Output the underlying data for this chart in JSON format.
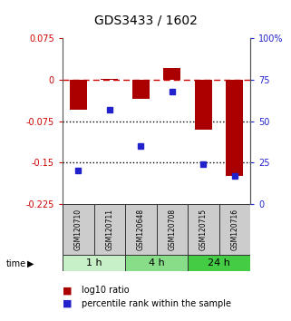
{
  "title": "GDS3433 / 1602",
  "samples": [
    "GSM120710",
    "GSM120711",
    "GSM120648",
    "GSM120708",
    "GSM120715",
    "GSM120716"
  ],
  "log10_ratio": [
    -0.055,
    0.002,
    -0.035,
    0.022,
    -0.09,
    -0.175
  ],
  "percentile_rank": [
    20,
    57,
    35,
    68,
    24,
    17
  ],
  "groups": [
    {
      "label": "1 h",
      "samples": [
        0,
        1
      ],
      "color": "#c8f0c8"
    },
    {
      "label": "4 h",
      "samples": [
        2,
        3
      ],
      "color": "#88dd88"
    },
    {
      "label": "24 h",
      "samples": [
        4,
        5
      ],
      "color": "#44cc44"
    }
  ],
  "bar_color": "#aa0000",
  "dot_color": "#2222cc",
  "ylim_left": [
    -0.225,
    0.075
  ],
  "ylim_right": [
    0,
    100
  ],
  "yticks_left": [
    0.075,
    0.0,
    -0.075,
    -0.15,
    -0.225
  ],
  "yticks_right": [
    100,
    75,
    50,
    25,
    0
  ],
  "hlines_dot": [
    -0.075,
    -0.15
  ],
  "bar_width": 0.55,
  "sample_box_color": "#cccccc",
  "edge_color": "#333333",
  "left_tick_color": "#cc0000",
  "right_tick_color": "#2222cc",
  "tick_fontsize": 7,
  "title_fontsize": 10,
  "legend_fontsize": 7
}
